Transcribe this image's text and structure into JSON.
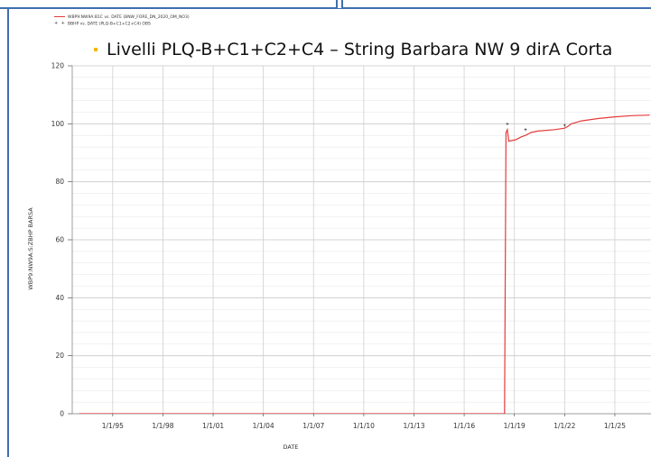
{
  "legend": {
    "series1_label": "WBP9:NW9A:B1C vs. DATE (BNW_FORE_DN_2020_OM_NO3)",
    "series2_label": "BBHP vs. DATE (PLQ-B+C1+C2+C4) OBS"
  },
  "colors": {
    "series_line": "#e53a3a",
    "obs_points": "#333333",
    "grid": "#d0d0d0",
    "bullet": "#f5b800"
  },
  "chart_data": {
    "type": "line",
    "title": "Livelli PLQ-B+C1+C2+C4 – String Barbara NW 9 dirA Corta",
    "xlabel": "DATE",
    "ylabel": "WBP9:NW9A:S:ZBHP  BARSA",
    "xlim": [
      "1992-08-01",
      "2027-03-01"
    ],
    "ylim": [
      0,
      120
    ],
    "yticks": [
      0,
      20,
      40,
      60,
      80,
      100,
      120
    ],
    "xticks": [
      "1/1/95",
      "1/1/98",
      "1/1/01",
      "1/1/04",
      "1/1/07",
      "1/1/10",
      "1/1/13",
      "1/1/16",
      "1/1/19",
      "1/1/22",
      "1/1/25"
    ],
    "grid": true,
    "legend_position": "top-left",
    "series": [
      {
        "name": "WBP9:NW9A:B1C vs. DATE (BNW_FORE_DN_2020_OM_NO3)",
        "style": "line",
        "points": [
          [
            "1993-01-01",
            0
          ],
          [
            "2018-06-01",
            0
          ],
          [
            "2018-07-01",
            97
          ],
          [
            "2018-08-01",
            98
          ],
          [
            "2018-09-01",
            94
          ],
          [
            "2019-02-01",
            94.5
          ],
          [
            "2019-06-01",
            95.5
          ],
          [
            "2019-09-01",
            96
          ],
          [
            "2020-01-01",
            97
          ],
          [
            "2020-06-01",
            97.5
          ],
          [
            "2021-06-01",
            98
          ],
          [
            "2022-01-01",
            98.5
          ],
          [
            "2022-03-01",
            99
          ],
          [
            "2022-06-01",
            100
          ],
          [
            "2023-01-01",
            101
          ],
          [
            "2024-01-01",
            101.8
          ],
          [
            "2025-01-01",
            102.4
          ],
          [
            "2026-01-01",
            102.8
          ],
          [
            "2027-02-01",
            103
          ]
        ]
      },
      {
        "name": "BBHP vs. DATE (PLQ-B+C1+C2+C4) OBS",
        "style": "points",
        "points": [
          [
            "2018-08-01",
            100
          ],
          [
            "2019-09-01",
            98
          ],
          [
            "2022-01-01",
            99.5
          ]
        ]
      }
    ]
  }
}
